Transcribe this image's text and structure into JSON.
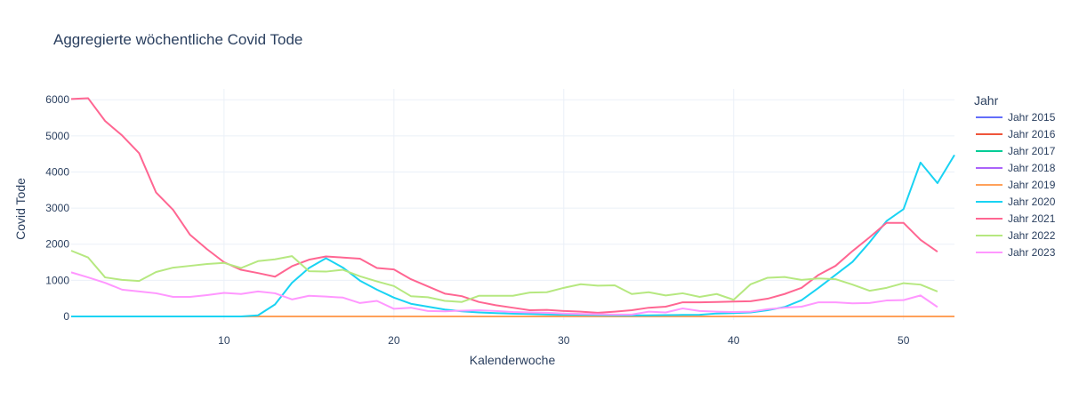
{
  "chart_data": {
    "type": "line",
    "title": "Aggregierte wöchentliche Covid Tode",
    "xlabel": "Kalenderwoche",
    "ylabel": "Covid Tode",
    "xlim": [
      1,
      53
    ],
    "ylim": [
      -100,
      6300
    ],
    "xticks": [
      10,
      20,
      30,
      40,
      50
    ],
    "yticks": [
      0,
      1000,
      2000,
      3000,
      4000,
      5000,
      6000
    ],
    "grid": true,
    "legend_title": "Jahr",
    "legend_position": "right",
    "series": [
      {
        "name": "Jahr 2015",
        "color": "#636efa",
        "x": [
          1,
          53
        ],
        "values": [
          0,
          0
        ]
      },
      {
        "name": "Jahr 2016",
        "color": "#ef553b",
        "x": [
          1,
          53
        ],
        "values": [
          0,
          0
        ]
      },
      {
        "name": "Jahr 2017",
        "color": "#00cc96",
        "x": [
          1,
          53
        ],
        "values": [
          0,
          0
        ]
      },
      {
        "name": "Jahr 2018",
        "color": "#ab63fa",
        "x": [
          1,
          53
        ],
        "values": [
          0,
          0
        ]
      },
      {
        "name": "Jahr 2019",
        "color": "#ffa15a",
        "x": [
          1,
          53
        ],
        "values": [
          0,
          0
        ]
      },
      {
        "name": "Jahr 2020",
        "color": "#19d3f3",
        "x": [
          1,
          2,
          3,
          4,
          5,
          6,
          7,
          8,
          9,
          10,
          11,
          12,
          13,
          14,
          15,
          16,
          17,
          18,
          19,
          20,
          21,
          22,
          23,
          24,
          25,
          26,
          27,
          28,
          29,
          30,
          31,
          32,
          33,
          34,
          35,
          36,
          37,
          38,
          39,
          40,
          41,
          42,
          43,
          44,
          45,
          46,
          47,
          48,
          49,
          50,
          51,
          52,
          53
        ],
        "values": [
          0,
          0,
          0,
          0,
          0,
          0,
          0,
          0,
          0,
          0,
          0,
          30,
          330,
          930,
          1340,
          1610,
          1350,
          990,
          740,
          520,
          350,
          270,
          190,
          140,
          110,
          90,
          75,
          65,
          55,
          45,
          40,
          35,
          30,
          25,
          30,
          35,
          40,
          45,
          80,
          90,
          110,
          170,
          260,
          450,
          790,
          1150,
          1510,
          2050,
          2640,
          2970,
          4260,
          3690,
          4470
        ]
      },
      {
        "name": "Jahr 2021",
        "color": "#ff6692",
        "x": [
          1,
          2,
          3,
          4,
          5,
          6,
          7,
          8,
          9,
          10,
          11,
          12,
          13,
          14,
          15,
          16,
          17,
          18,
          19,
          20,
          21,
          22,
          23,
          24,
          25,
          26,
          27,
          28,
          29,
          30,
          31,
          32,
          33,
          34,
          35,
          36,
          37,
          38,
          39,
          40,
          41,
          42,
          43,
          44,
          45,
          46,
          47,
          48,
          49,
          50,
          51,
          52
        ],
        "values": [
          6020,
          6040,
          5410,
          5010,
          4520,
          3430,
          2950,
          2260,
          1860,
          1500,
          1290,
          1200,
          1100,
          1390,
          1570,
          1660,
          1630,
          1600,
          1340,
          1300,
          1030,
          830,
          630,
          560,
          400,
          310,
          240,
          170,
          180,
          150,
          130,
          100,
          130,
          170,
          240,
          270,
          390,
          390,
          400,
          410,
          420,
          490,
          620,
          790,
          1150,
          1400,
          1810,
          2190,
          2590,
          2590,
          2120,
          1790
        ]
      },
      {
        "name": "Jahr 2022",
        "color": "#b6e880",
        "x": [
          1,
          2,
          3,
          4,
          5,
          6,
          7,
          8,
          9,
          10,
          11,
          12,
          13,
          14,
          15,
          16,
          17,
          18,
          19,
          20,
          21,
          22,
          23,
          24,
          25,
          26,
          27,
          28,
          29,
          30,
          31,
          32,
          33,
          34,
          35,
          36,
          37,
          38,
          39,
          40,
          41,
          42,
          43,
          44,
          45,
          46,
          47,
          48,
          49,
          50,
          51,
          52
        ],
        "values": [
          1820,
          1630,
          1080,
          1010,
          980,
          1230,
          1350,
          1400,
          1450,
          1480,
          1340,
          1530,
          1580,
          1670,
          1250,
          1240,
          1290,
          1110,
          970,
          840,
          560,
          530,
          430,
          400,
          570,
          570,
          570,
          660,
          670,
          790,
          890,
          850,
          860,
          620,
          670,
          580,
          640,
          540,
          620,
          460,
          890,
          1070,
          1090,
          1010,
          1050,
          1030,
          880,
          710,
          790,
          920,
          880,
          690
        ]
      },
      {
        "name": "Jahr 2023",
        "color": "#ff97ff",
        "x": [
          1,
          2,
          3,
          4,
          5,
          6,
          7,
          8,
          9,
          10,
          11,
          12,
          13,
          14,
          15,
          16,
          17,
          18,
          19,
          20,
          21,
          22,
          23,
          24,
          25,
          26,
          27,
          28,
          29,
          30,
          31,
          32,
          33,
          34,
          35,
          36,
          37,
          38,
          39,
          40,
          41,
          42,
          43,
          44,
          45,
          46,
          47,
          48,
          49,
          50,
          51,
          52
        ],
        "values": [
          1220,
          1080,
          930,
          740,
          690,
          640,
          540,
          540,
          590,
          650,
          620,
          690,
          640,
          470,
          570,
          550,
          520,
          370,
          430,
          210,
          240,
          150,
          140,
          160,
          170,
          150,
          120,
          110,
          100,
          80,
          70,
          60,
          50,
          50,
          130,
          110,
          220,
          150,
          130,
          120,
          130,
          200,
          240,
          270,
          390,
          390,
          360,
          370,
          440,
          450,
          580,
          260
        ]
      }
    ]
  }
}
